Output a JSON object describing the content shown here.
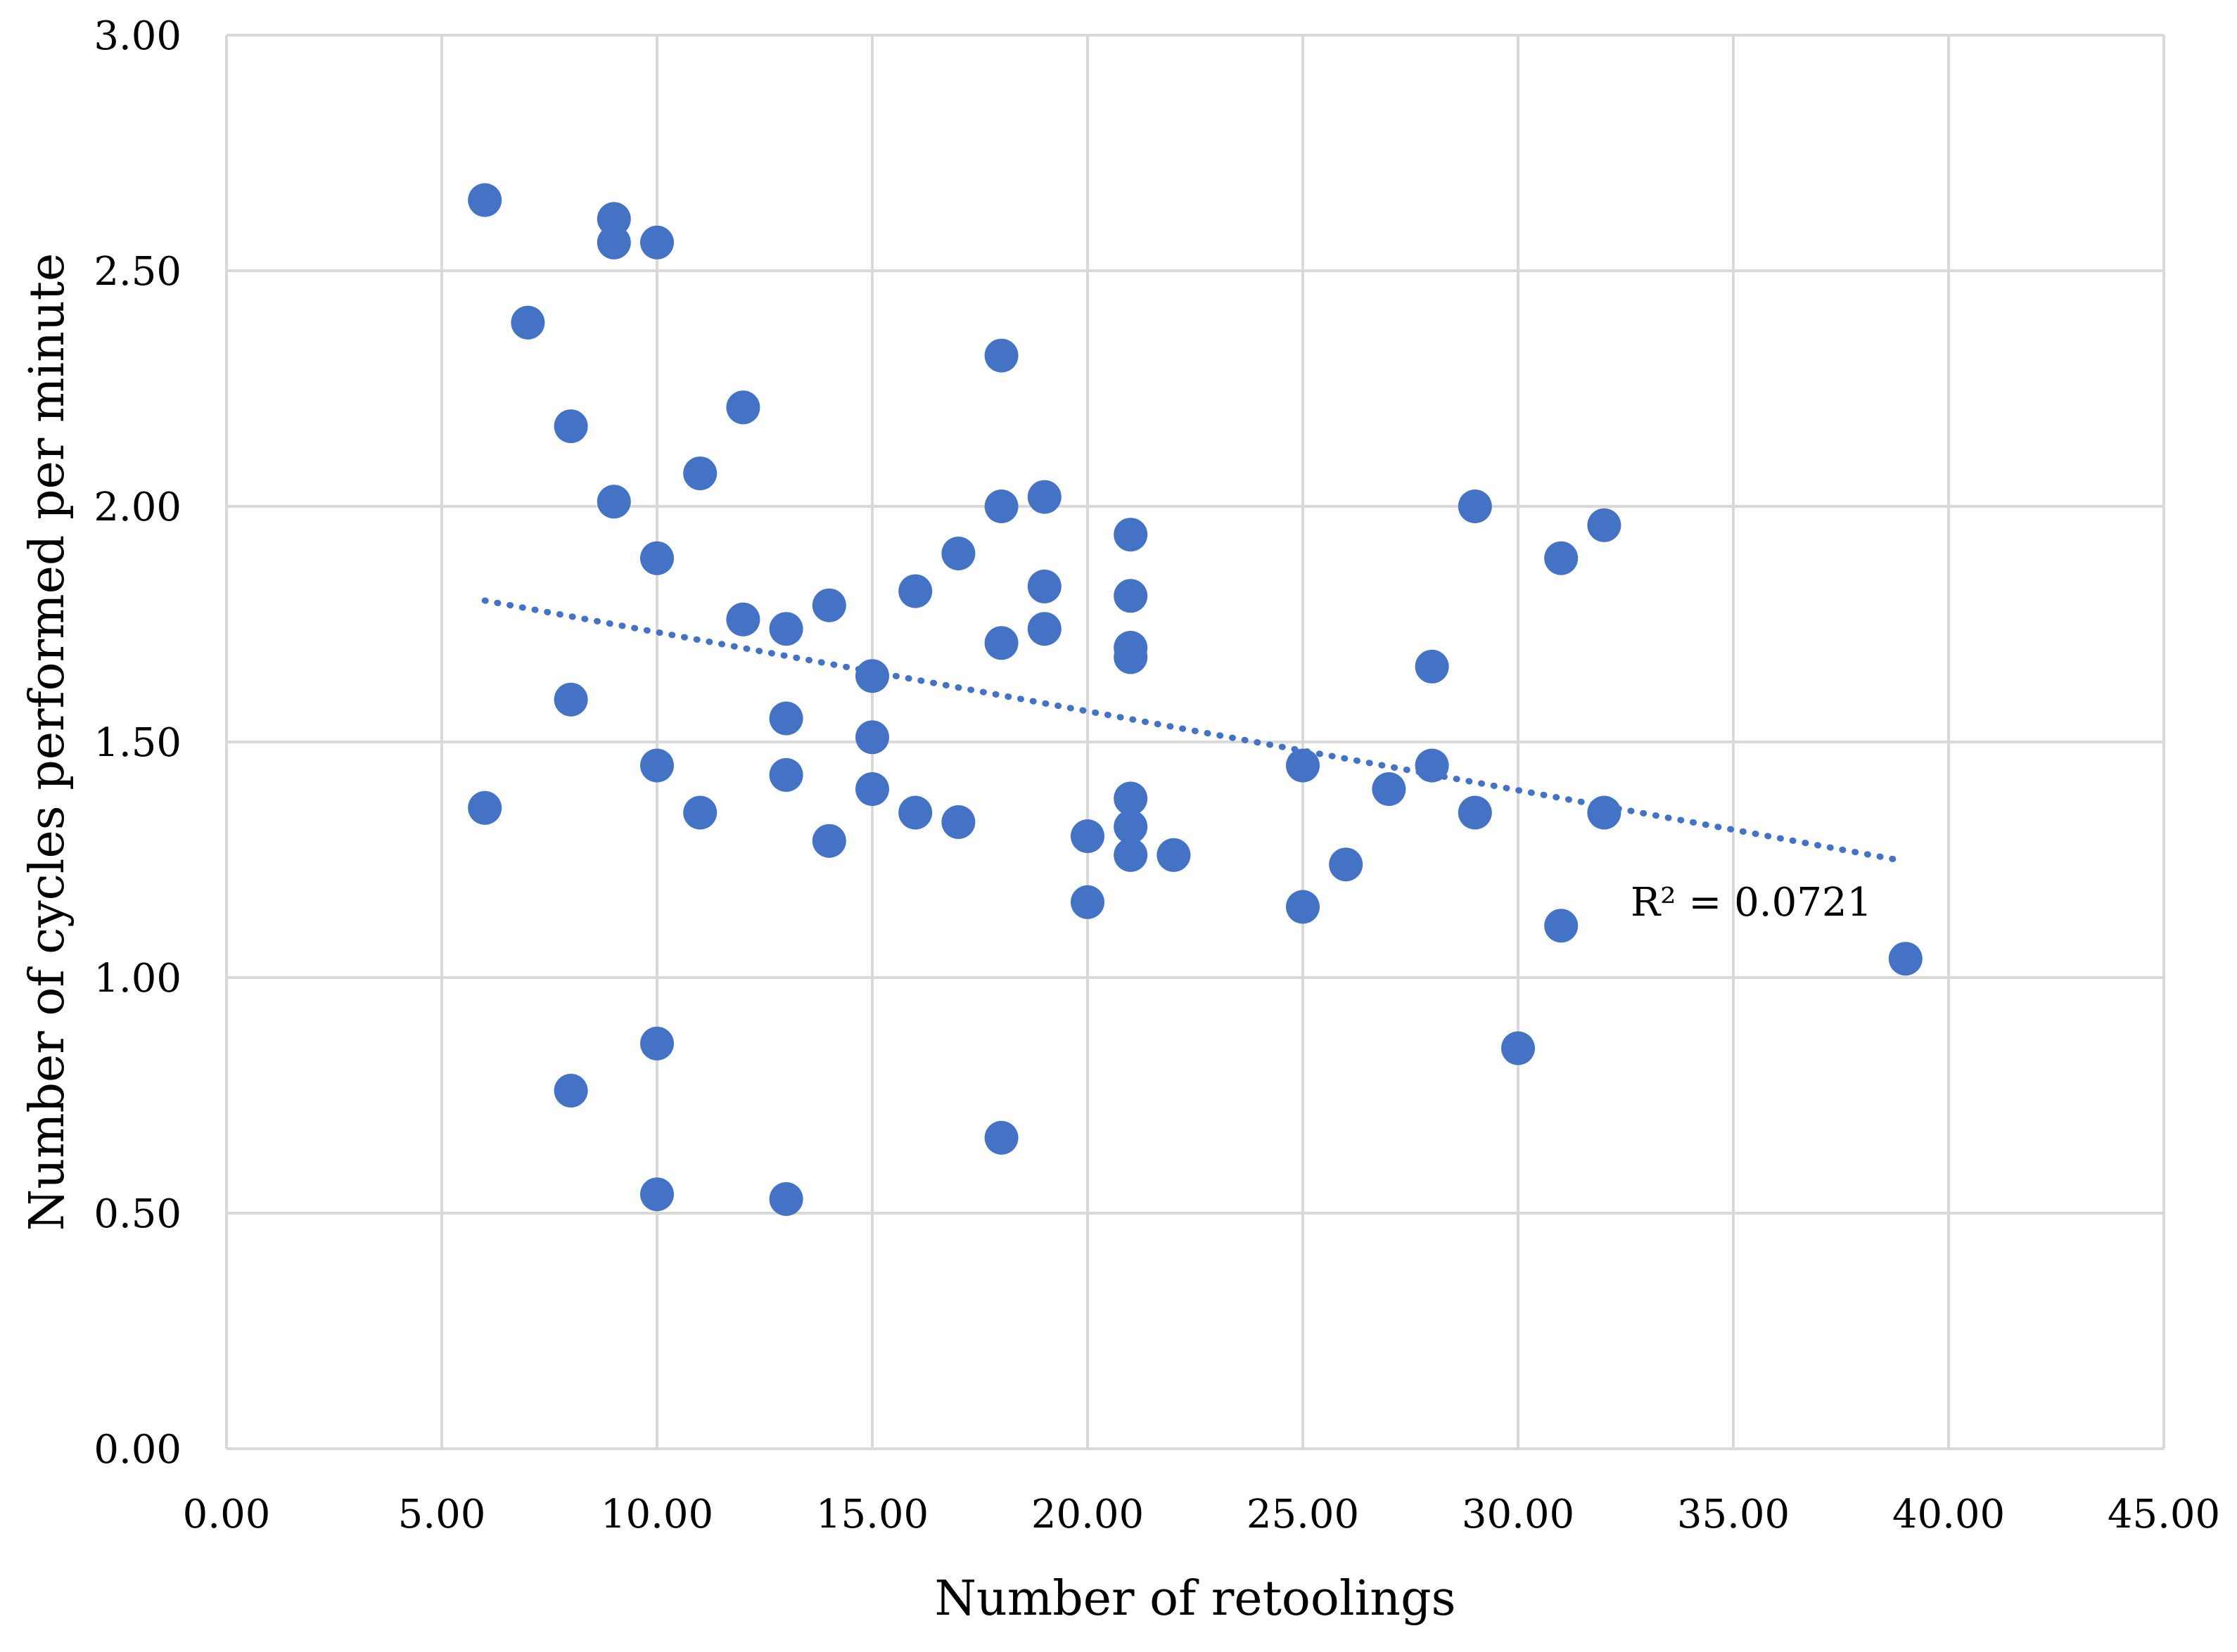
{
  "chart_data": {
    "type": "scatter",
    "title": "",
    "xlabel": "Number of retoolings",
    "ylabel": "Number of cycles performed per minute",
    "xlim": [
      0,
      45
    ],
    "ylim": [
      0,
      3
    ],
    "x_ticks": [
      "0.00",
      "5.00",
      "10.00",
      "15.00",
      "20.00",
      "25.00",
      "30.00",
      "35.00",
      "40.00",
      "45.00"
    ],
    "y_ticks": [
      "0.00",
      "0.50",
      "1.00",
      "1.50",
      "2.00",
      "2.50",
      "3.00"
    ],
    "x_tick_values": [
      0,
      5,
      10,
      15,
      20,
      25,
      30,
      35,
      40,
      45
    ],
    "y_tick_values": [
      0,
      0.5,
      1,
      1.5,
      2,
      2.5,
      3
    ],
    "grid": true,
    "marker_color": "#4472C4",
    "trendline_color": "#4472C4",
    "gridline_color": "#d9d9d9",
    "points": [
      [
        6,
        2.65
      ],
      [
        6,
        1.36
      ],
      [
        7,
        2.39
      ],
      [
        8,
        2.17
      ],
      [
        8,
        1.59
      ],
      [
        8,
        0.76
      ],
      [
        9,
        2.61
      ],
      [
        9,
        2.56
      ],
      [
        9,
        2.01
      ],
      [
        10,
        2.56
      ],
      [
        10,
        1.89
      ],
      [
        10,
        1.45
      ],
      [
        10,
        0.86
      ],
      [
        10,
        0.54
      ],
      [
        11,
        2.07
      ],
      [
        11,
        1.35
      ],
      [
        12,
        2.21
      ],
      [
        12,
        1.76
      ],
      [
        13,
        1.74
      ],
      [
        13,
        1.55
      ],
      [
        13,
        1.43
      ],
      [
        13,
        0.53
      ],
      [
        14,
        1.79
      ],
      [
        14,
        1.29
      ],
      [
        15,
        1.64
      ],
      [
        15,
        1.51
      ],
      [
        15,
        1.4
      ],
      [
        16,
        1.82
      ],
      [
        16,
        1.35
      ],
      [
        17,
        1.9
      ],
      [
        17,
        1.33
      ],
      [
        18,
        2.32
      ],
      [
        18,
        2.0
      ],
      [
        18,
        1.71
      ],
      [
        18,
        0.66
      ],
      [
        19,
        2.02
      ],
      [
        19,
        1.83
      ],
      [
        19,
        1.74
      ],
      [
        20,
        1.3
      ],
      [
        20,
        1.16
      ],
      [
        21,
        1.94
      ],
      [
        21,
        1.81
      ],
      [
        21,
        1.7
      ],
      [
        21,
        1.68
      ],
      [
        21,
        1.38
      ],
      [
        21,
        1.32
      ],
      [
        21,
        1.26
      ],
      [
        22,
        1.26
      ],
      [
        25,
        1.45
      ],
      [
        25,
        1.15
      ],
      [
        26,
        1.24
      ],
      [
        27,
        1.4
      ],
      [
        28,
        1.66
      ],
      [
        28,
        1.45
      ],
      [
        29,
        2.0
      ],
      [
        29,
        1.35
      ],
      [
        30,
        0.85
      ],
      [
        31,
        1.89
      ],
      [
        31,
        1.11
      ],
      [
        32,
        1.96
      ],
      [
        32,
        1.35
      ],
      [
        39,
        1.04
      ]
    ],
    "trendline": {
      "type": "linear",
      "style": "dotted",
      "x_start": 6,
      "x_end": 38.8,
      "y_start": 1.8,
      "y_end": 1.25,
      "r2_label": "R² = 0.0721"
    }
  }
}
